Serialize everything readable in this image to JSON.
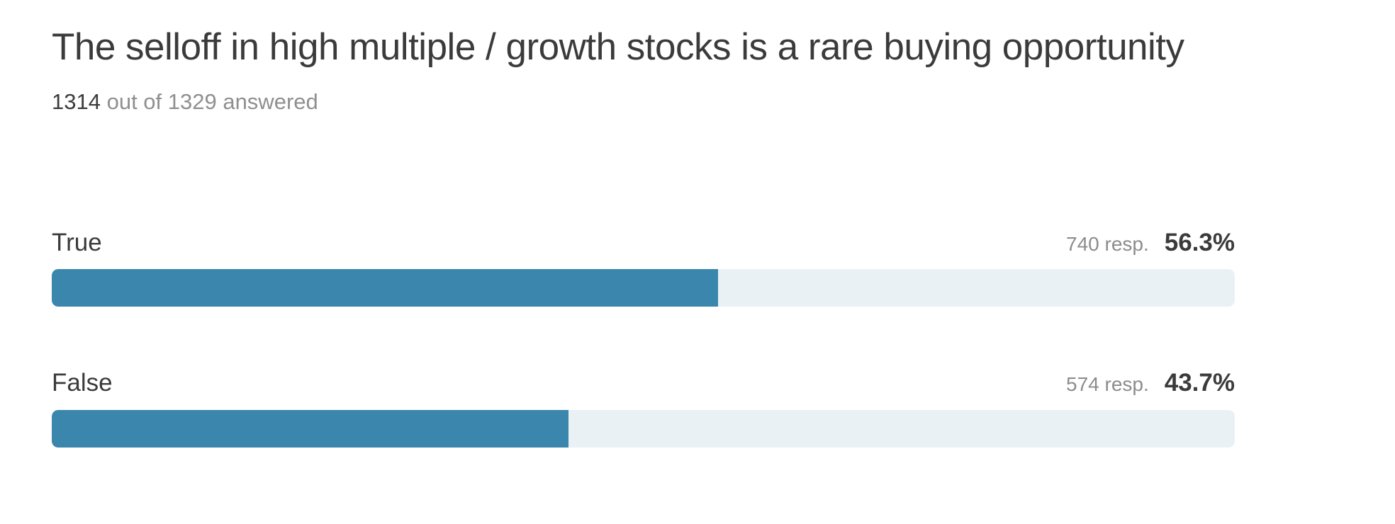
{
  "header": {
    "title": "The selloff in high multiple / growth stocks is a rare buying opportunity",
    "answered_count": "1314",
    "answered_suffix": " out of 1329 answered"
  },
  "options": [
    {
      "label": "True",
      "responses_label": "740 resp.",
      "responses_value": 740,
      "percent_label": "56.3%",
      "percent_value": 56.3
    },
    {
      "label": "False",
      "responses_label": "574 resp.",
      "responses_value": 574,
      "percent_label": "43.7%",
      "percent_value": 43.7
    }
  ],
  "colors": {
    "bar_fill": "#3a86ac",
    "bar_track": "#eaf1f5",
    "text_dark": "#3b3b3b",
    "text_gray": "#8f8f8f"
  },
  "chart_data": {
    "type": "bar",
    "orientation": "horizontal",
    "title": "The selloff in high multiple / growth stocks is a rare buying opportunity",
    "subtitle": "1314 out of 1329 answered",
    "categories": [
      "True",
      "False"
    ],
    "series": [
      {
        "name": "percent",
        "values": [
          56.3,
          43.7
        ]
      },
      {
        "name": "responses",
        "values": [
          740,
          574
        ]
      }
    ],
    "total_answered": 1314,
    "total_invited": 1329,
    "xlim": [
      0,
      100
    ],
    "grid": false,
    "legend": false,
    "data_labels": [
      "740 resp. 56.3%",
      "574 resp. 43.7%"
    ]
  }
}
